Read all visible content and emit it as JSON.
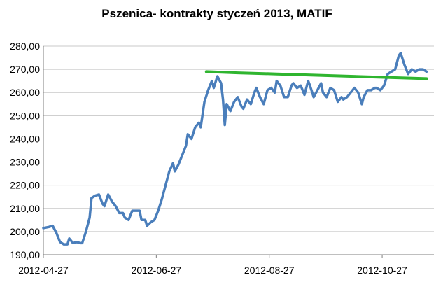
{
  "chart_data": {
    "type": "line",
    "title": "Pszenica- kontrakty styczeń 2013, MATIF",
    "xlabel": "",
    "ylabel": "",
    "ylim": [
      190,
      280
    ],
    "y_ticks": [
      "190,00",
      "200,00",
      "210,00",
      "220,00",
      "230,00",
      "240,00",
      "250,00",
      "260,00",
      "270,00",
      "280,00"
    ],
    "y_tick_values": [
      190,
      200,
      210,
      220,
      230,
      240,
      250,
      260,
      270,
      280
    ],
    "x_ticks": [
      "2012-04-27",
      "2012-06-27",
      "2012-08-27",
      "2012-10-27"
    ],
    "x_tick_dates": [
      "2012-04-27",
      "2012-06-27",
      "2012-08-27",
      "2012-10-27"
    ],
    "xlim": [
      "2012-04-27",
      "2012-11-20"
    ],
    "grid": "horizontal",
    "legend": "none",
    "colors": {
      "price": "#4a7ebb",
      "trend": "#2fb52f",
      "grid": "#c8c8c8"
    },
    "series": [
      {
        "style": "price",
        "points": [
          [
            "2012-04-27",
            201.5
          ],
          [
            "2012-04-30",
            202
          ],
          [
            "2012-05-02",
            202.5
          ],
          [
            "2012-05-04",
            199.5
          ],
          [
            "2012-05-06",
            195.5
          ],
          [
            "2012-05-08",
            194.5
          ],
          [
            "2012-05-10",
            194.5
          ],
          [
            "2012-05-11",
            197
          ],
          [
            "2012-05-13",
            195
          ],
          [
            "2012-05-15",
            195.5
          ],
          [
            "2012-05-17",
            195
          ],
          [
            "2012-05-18",
            195
          ],
          [
            "2012-05-20",
            200
          ],
          [
            "2012-05-22",
            206
          ],
          [
            "2012-05-23",
            214.5
          ],
          [
            "2012-05-25",
            215.5
          ],
          [
            "2012-05-27",
            216
          ],
          [
            "2012-05-29",
            212
          ],
          [
            "2012-05-30",
            211
          ],
          [
            "2012-06-01",
            216
          ],
          [
            "2012-06-03",
            213
          ],
          [
            "2012-06-05",
            211
          ],
          [
            "2012-06-07",
            208
          ],
          [
            "2012-06-09",
            208
          ],
          [
            "2012-06-10",
            206
          ],
          [
            "2012-06-12",
            205
          ],
          [
            "2012-06-14",
            209
          ],
          [
            "2012-06-16",
            209
          ],
          [
            "2012-06-18",
            209
          ],
          [
            "2012-06-19",
            205
          ],
          [
            "2012-06-21",
            205
          ],
          [
            "2012-06-22",
            202.5
          ],
          [
            "2012-06-24",
            204
          ],
          [
            "2012-06-26",
            205
          ],
          [
            "2012-06-28",
            209
          ],
          [
            "2012-06-30",
            214
          ],
          [
            "2012-07-02",
            220
          ],
          [
            "2012-07-04",
            226
          ],
          [
            "2012-07-06",
            229.5
          ],
          [
            "2012-07-07",
            226
          ],
          [
            "2012-07-09",
            229
          ],
          [
            "2012-07-11",
            233
          ],
          [
            "2012-07-13",
            237
          ],
          [
            "2012-07-14",
            242
          ],
          [
            "2012-07-16",
            240
          ],
          [
            "2012-07-18",
            245
          ],
          [
            "2012-07-20",
            247
          ],
          [
            "2012-07-21",
            245
          ],
          [
            "2012-07-23",
            256
          ],
          [
            "2012-07-25",
            261
          ],
          [
            "2012-07-27",
            265
          ],
          [
            "2012-07-28",
            262
          ],
          [
            "2012-07-30",
            267
          ],
          [
            "2012-08-01",
            264
          ],
          [
            "2012-08-02",
            257
          ],
          [
            "2012-08-03",
            246
          ],
          [
            "2012-08-04",
            255
          ],
          [
            "2012-08-06",
            252
          ],
          [
            "2012-08-08",
            256
          ],
          [
            "2012-08-10",
            258
          ],
          [
            "2012-08-12",
            254
          ],
          [
            "2012-08-13",
            253
          ],
          [
            "2012-08-15",
            257
          ],
          [
            "2012-08-17",
            255
          ],
          [
            "2012-08-19",
            260
          ],
          [
            "2012-08-20",
            262
          ],
          [
            "2012-08-22",
            258
          ],
          [
            "2012-08-24",
            255
          ],
          [
            "2012-08-26",
            261
          ],
          [
            "2012-08-28",
            262
          ],
          [
            "2012-08-30",
            260
          ],
          [
            "2012-08-31",
            265
          ],
          [
            "2012-09-02",
            263
          ],
          [
            "2012-09-04",
            258
          ],
          [
            "2012-09-06",
            258
          ],
          [
            "2012-09-08",
            263
          ],
          [
            "2012-09-09",
            264
          ],
          [
            "2012-09-11",
            262
          ],
          [
            "2012-09-13",
            263
          ],
          [
            "2012-09-15",
            259
          ],
          [
            "2012-09-17",
            265
          ],
          [
            "2012-09-18",
            263
          ],
          [
            "2012-09-20",
            258
          ],
          [
            "2012-09-22",
            261
          ],
          [
            "2012-09-24",
            264
          ],
          [
            "2012-09-25",
            260
          ],
          [
            "2012-09-27",
            258
          ],
          [
            "2012-09-29",
            262
          ],
          [
            "2012-10-01",
            261
          ],
          [
            "2012-10-03",
            256
          ],
          [
            "2012-10-05",
            258
          ],
          [
            "2012-10-06",
            257
          ],
          [
            "2012-10-08",
            258
          ],
          [
            "2012-10-10",
            260
          ],
          [
            "2012-10-12",
            262
          ],
          [
            "2012-10-14",
            260
          ],
          [
            "2012-10-16",
            255
          ],
          [
            "2012-10-17",
            258
          ],
          [
            "2012-10-19",
            261
          ],
          [
            "2012-10-21",
            261
          ],
          [
            "2012-10-23",
            262
          ],
          [
            "2012-10-24",
            262
          ],
          [
            "2012-10-26",
            261
          ],
          [
            "2012-10-28",
            263
          ],
          [
            "2012-10-30",
            268
          ],
          [
            "2012-11-01",
            269
          ],
          [
            "2012-11-03",
            270
          ],
          [
            "2012-11-05",
            276
          ],
          [
            "2012-11-06",
            277
          ],
          [
            "2012-11-08",
            272
          ],
          [
            "2012-11-10",
            268
          ],
          [
            "2012-11-12",
            270
          ],
          [
            "2012-11-14",
            269
          ],
          [
            "2012-11-16",
            270
          ],
          [
            "2012-11-18",
            270
          ],
          [
            "2012-11-20",
            269
          ]
        ]
      },
      {
        "style": "trend",
        "points": [
          [
            "2012-07-24",
            269
          ],
          [
            "2012-08-10",
            268.5
          ],
          [
            "2012-08-31",
            268
          ],
          [
            "2012-09-20",
            267.5
          ],
          [
            "2012-10-10",
            267
          ],
          [
            "2012-10-31",
            266.5
          ],
          [
            "2012-11-20",
            266
          ]
        ]
      }
    ]
  }
}
